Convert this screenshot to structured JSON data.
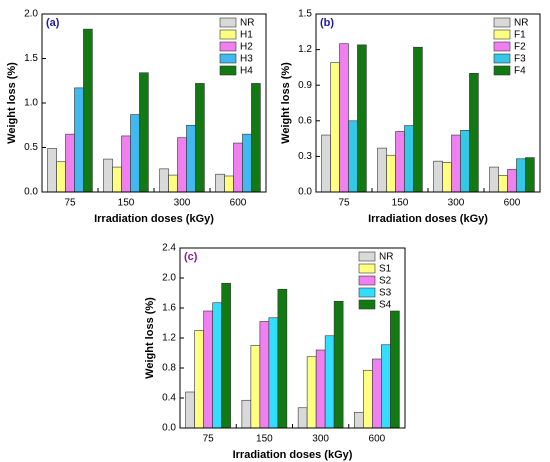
{
  "chart_data": [
    {
      "type": "bar",
      "panel_label": "(a)",
      "x_label": "Irradiation doses (kGy)",
      "y_label": "Weight loss (%)",
      "categories": [
        "75",
        "150",
        "300",
        "600"
      ],
      "series": [
        {
          "name": "NR",
          "color": "#d9d9d9",
          "values": [
            0.49,
            0.37,
            0.26,
            0.2
          ]
        },
        {
          "name": "H1",
          "color": "#ffff80",
          "values": [
            0.34,
            0.28,
            0.19,
            0.18
          ]
        },
        {
          "name": "H2",
          "color": "#f080f0",
          "values": [
            0.65,
            0.63,
            0.61,
            0.55
          ]
        },
        {
          "name": "H3",
          "color": "#40b8f0",
          "values": [
            1.17,
            0.87,
            0.75,
            0.65
          ]
        },
        {
          "name": "H4",
          "color": "#137a13",
          "values": [
            1.83,
            1.34,
            1.22,
            1.22
          ]
        }
      ],
      "ylim": [
        0,
        2
      ],
      "yticks": [
        {
          "value": 0,
          "label": "0.0"
        },
        0.5,
        {
          "value": 1,
          "label": "1.0"
        },
        1.5,
        {
          "value": 2,
          "label": "2.0"
        }
      ],
      "legend": "upper right"
    },
    {
      "type": "bar",
      "panel_label": "(b)",
      "x_label": "Irradiation doses (kGy)",
      "y_label": "Weight loss (%)",
      "categories": [
        "75",
        "150",
        "300",
        "600"
      ],
      "series": [
        {
          "name": "NR",
          "color": "#d9d9d9",
          "values": [
            0.48,
            0.37,
            0.26,
            0.21
          ]
        },
        {
          "name": "F1",
          "color": "#ffff80",
          "values": [
            1.09,
            0.31,
            0.25,
            0.14
          ]
        },
        {
          "name": "F2",
          "color": "#f080f0",
          "values": [
            1.25,
            0.51,
            0.48,
            0.19
          ]
        },
        {
          "name": "F3",
          "color": "#33c8e8",
          "values": [
            0.6,
            0.56,
            0.52,
            0.28
          ]
        },
        {
          "name": "F4",
          "color": "#137a13",
          "values": [
            1.24,
            1.22,
            1.0,
            0.29
          ]
        }
      ],
      "ylim": [
        0,
        1.5
      ],
      "yticks": [
        {
          "value": 0,
          "label": "0.0"
        },
        0.3,
        0.6,
        0.9,
        1.2,
        1.5
      ],
      "legend": "upper right"
    },
    {
      "type": "bar",
      "panel_label": "(c)",
      "x_label": "Irradiation doses (kGy)",
      "y_label": "Weight loss (%)",
      "categories": [
        "75",
        "150",
        "300",
        "600"
      ],
      "series": [
        {
          "name": "NR",
          "color": "#d9d9d9",
          "values": [
            0.48,
            0.37,
            0.27,
            0.21
          ]
        },
        {
          "name": "S1",
          "color": "#ffff80",
          "values": [
            1.3,
            1.1,
            0.95,
            0.77
          ]
        },
        {
          "name": "S2",
          "color": "#f080f0",
          "values": [
            1.56,
            1.42,
            1.04,
            0.92
          ]
        },
        {
          "name": "S3",
          "color": "#33ddff",
          "values": [
            1.67,
            1.47,
            1.23,
            1.11
          ]
        },
        {
          "name": "S4",
          "color": "#137a13",
          "values": [
            1.93,
            1.85,
            1.69,
            1.56
          ]
        }
      ],
      "ylim": [
        0,
        2.4
      ],
      "yticks": [
        {
          "value": 0,
          "label": "0.0"
        },
        0.4,
        0.8,
        1.2,
        1.6,
        {
          "value": 2,
          "label": "2.0"
        },
        2.4
      ],
      "legend": "upper right"
    }
  ]
}
